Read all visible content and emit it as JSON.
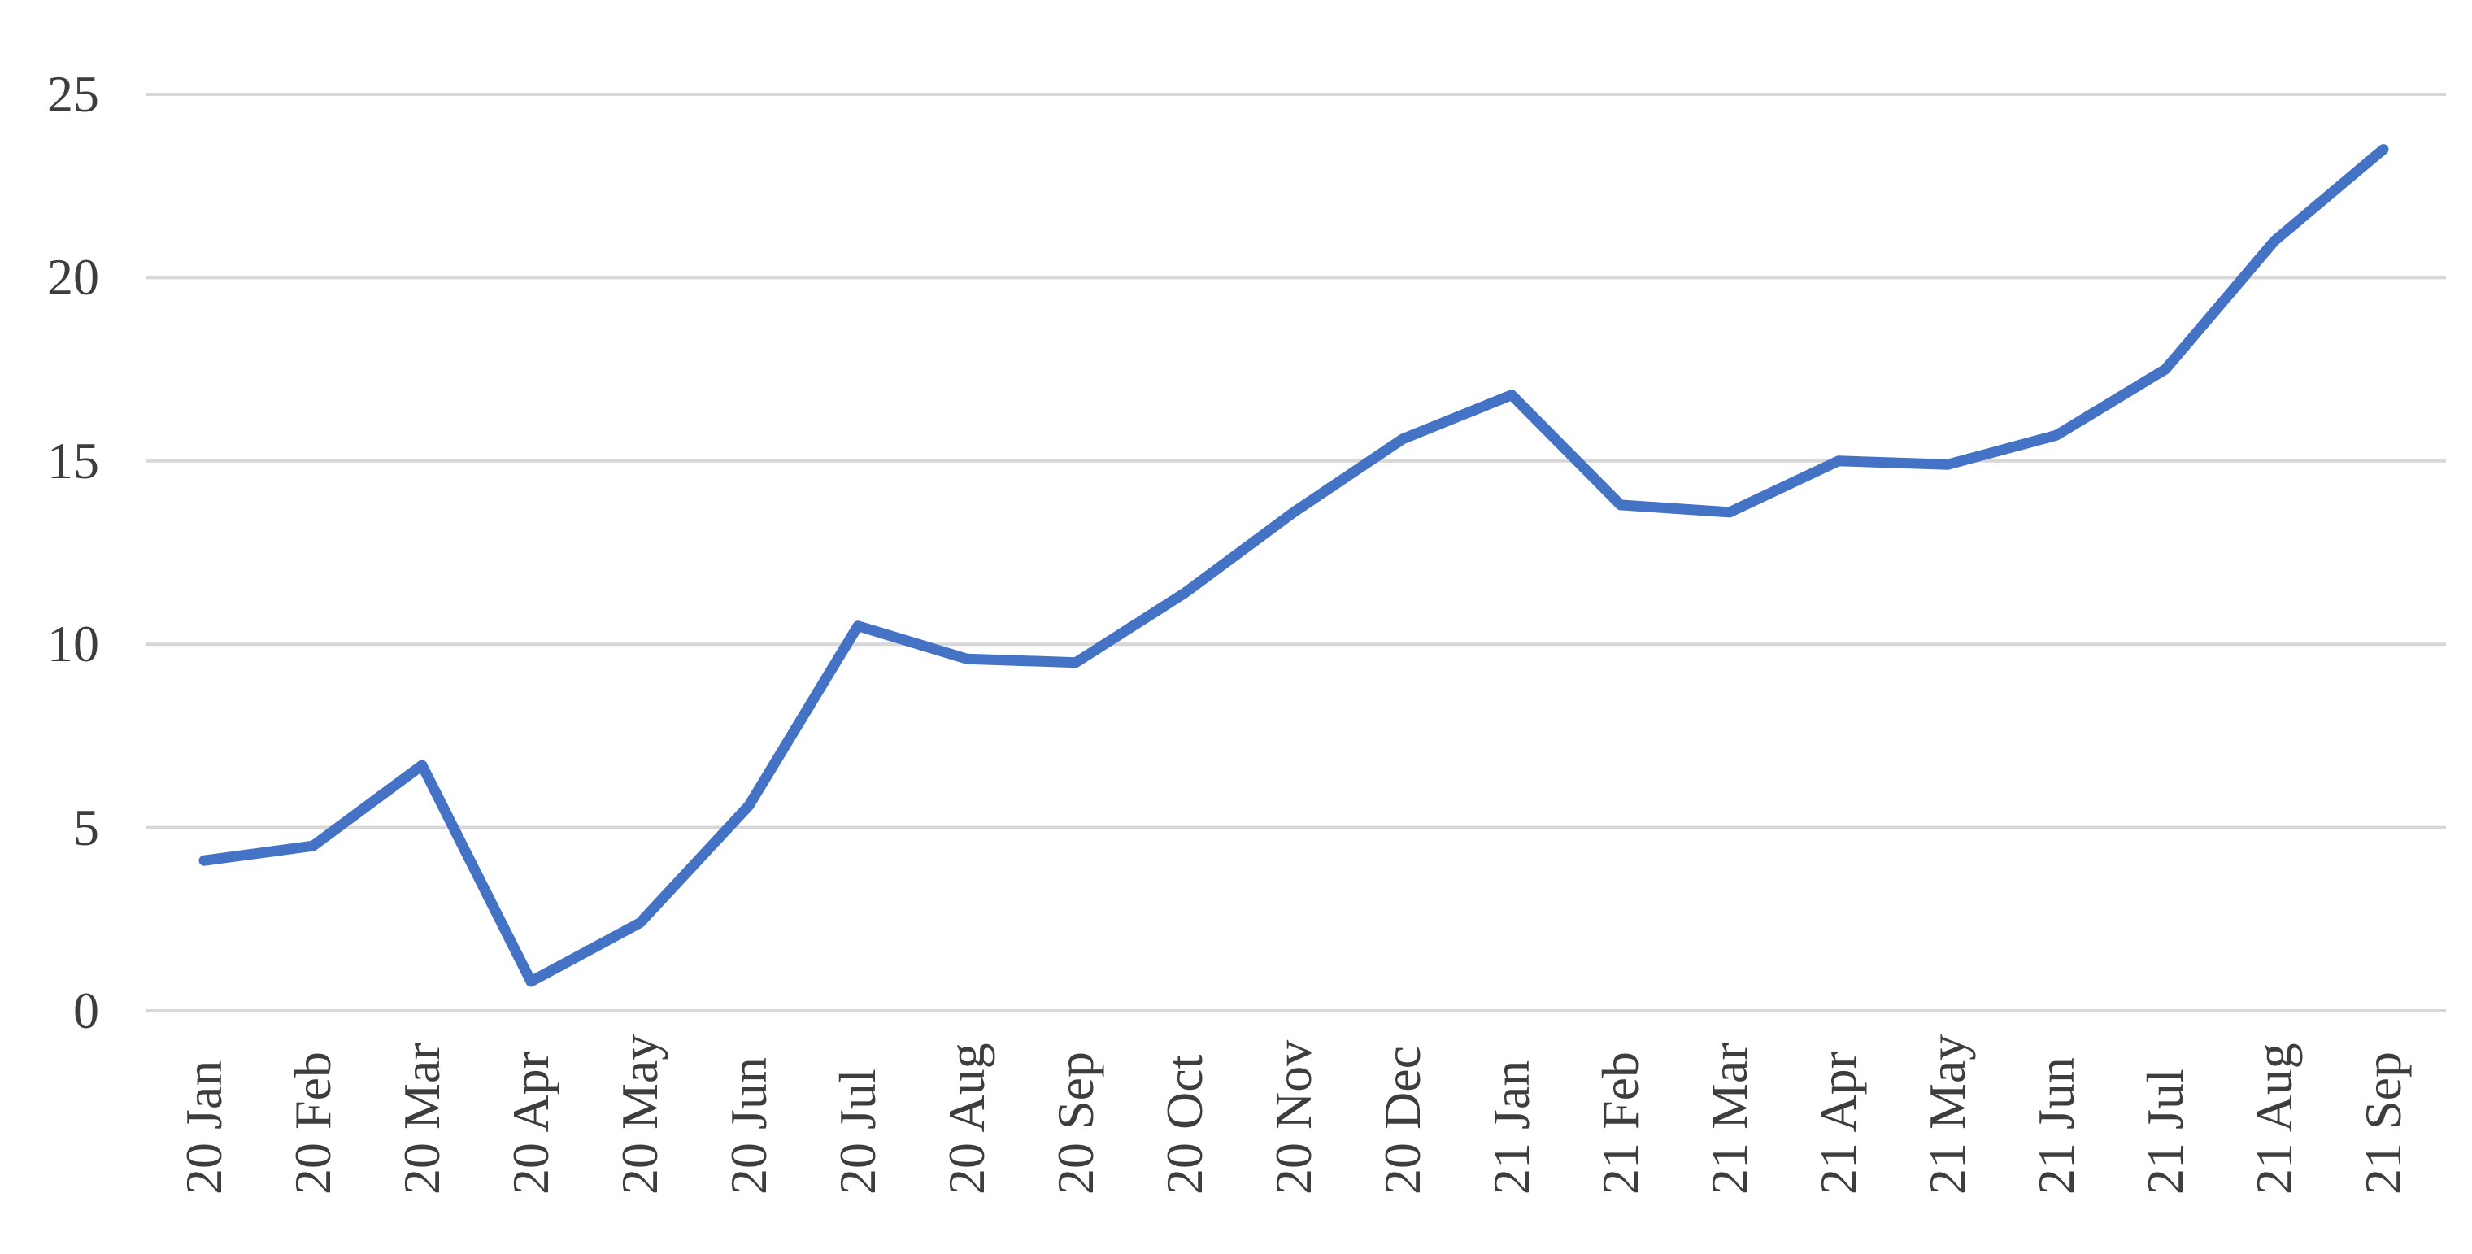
{
  "chart_data": {
    "type": "line",
    "title": "",
    "categories": [
      "20 Jan",
      "20 Feb",
      "20 Mar",
      "20 Apr",
      "20 May",
      "20 Jun",
      "20 Jul",
      "20 Aug",
      "20 Sep",
      "20 Oct",
      "20 Nov",
      "20 Dec",
      "21 Jan",
      "21 Feb",
      "21 Mar",
      "21 Apr",
      "21 May",
      "21 Jun",
      "21 Jul",
      "21 Aug",
      "21 Sep"
    ],
    "series": [
      {
        "name": "",
        "values": [
          4.1,
          4.5,
          6.7,
          0.8,
          2.4,
          5.6,
          10.5,
          9.6,
          9.5,
          11.4,
          13.6,
          15.6,
          16.8,
          13.8,
          13.6,
          15.0,
          14.9,
          15.7,
          17.5,
          21.0,
          23.5
        ]
      }
    ],
    "xlabel": "",
    "ylabel": "",
    "ylim": [
      0,
      25
    ],
    "ytick_interval": 5,
    "ytick_labels": [
      "0",
      "5",
      "10",
      "15",
      "20",
      "25"
    ],
    "grid": true,
    "legend_position": "none",
    "colors": {
      "line": "#4472C4",
      "gridline": "#D7D7D7",
      "tick_label": "#3d3d3d",
      "background": "#ffffff"
    }
  }
}
